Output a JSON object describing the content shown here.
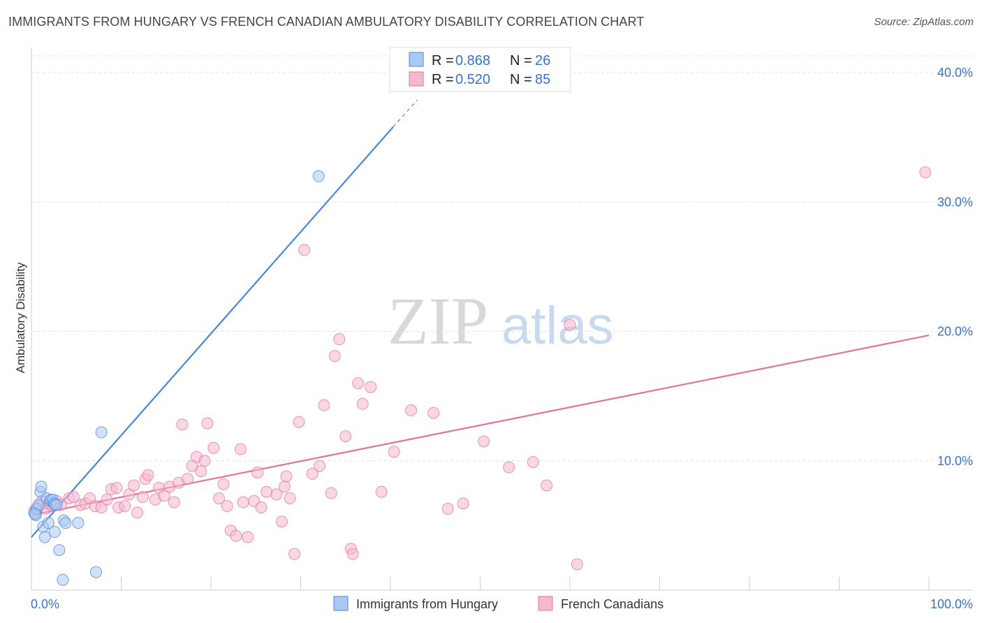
{
  "header": {
    "title": "IMMIGRANTS FROM HUNGARY VS FRENCH CANADIAN AMBULATORY DISABILITY CORRELATION CHART",
    "source": "Source: ZipAtlas.com"
  },
  "watermark": {
    "zip": "ZIP",
    "atlas": "atlas"
  },
  "colors": {
    "blue": "#4a86d8",
    "blue_fill": "#a9c8f3",
    "pink": "#e3719b",
    "pink_fill": "#f6b8cc",
    "label": "#3a72c8"
  },
  "chart_data": {
    "type": "scatter",
    "title": "IMMIGRANTS FROM HUNGARY VS FRENCH CANADIAN AMBULATORY DISABILITY CORRELATION CHART",
    "xlabel": "",
    "ylabel": "Ambulatory Disability",
    "xlim": [
      0,
      100
    ],
    "ylim": [
      0,
      41.3
    ],
    "x_tick_labels": {
      "min": "0.0%",
      "max": "100.0%"
    },
    "y_ticks": [
      {
        "value": 10,
        "label": "10.0%"
      },
      {
        "value": 20,
        "label": "20.0%"
      },
      {
        "value": 30,
        "label": "30.0%"
      },
      {
        "value": 40,
        "label": "40.0%"
      }
    ],
    "grid": true,
    "legend": [
      {
        "series": "Immigrants from Hungary",
        "r_label": "R =",
        "r": "0.868",
        "n_label": "N =",
        "n": "26"
      },
      {
        "series": "French Canadians",
        "r_label": "R =",
        "r": "0.520",
        "n_label": "N =",
        "n": "85"
      }
    ],
    "series": [
      {
        "name": "Immigrants from Hungary",
        "color": "blue",
        "trend": {
          "x0": 0,
          "y0": 4.1,
          "x1": 40.3,
          "y1": 35.8,
          "dash_to_x": 43.0,
          "dash_to_y": 37.9
        },
        "points": [
          [
            0.3,
            6.0
          ],
          [
            0.5,
            5.8
          ],
          [
            0.6,
            6.3
          ],
          [
            0.8,
            6.6
          ],
          [
            1.0,
            7.6
          ],
          [
            1.1,
            8.0
          ],
          [
            1.3,
            4.9
          ],
          [
            1.5,
            4.1
          ],
          [
            1.7,
            7.1
          ],
          [
            1.9,
            5.2
          ],
          [
            2.1,
            6.9
          ],
          [
            2.2,
            7.0
          ],
          [
            2.4,
            7.0
          ],
          [
            2.5,
            6.7
          ],
          [
            2.6,
            6.6
          ],
          [
            2.8,
            6.6
          ],
          [
            2.6,
            4.5
          ],
          [
            3.1,
            3.1
          ],
          [
            3.5,
            0.8
          ],
          [
            3.6,
            5.4
          ],
          [
            3.8,
            5.2
          ],
          [
            5.2,
            5.2
          ],
          [
            7.2,
            1.4
          ],
          [
            7.8,
            12.2
          ],
          [
            0.4,
            5.9
          ],
          [
            32.0,
            32.0
          ]
        ]
      },
      {
        "name": "French Canadians",
        "color": "pink",
        "trend": {
          "x0": 0,
          "y0": 5.8,
          "x1": 100,
          "y1": 19.7
        },
        "points": [
          [
            0.4,
            6.2
          ],
          [
            0.9,
            6.5
          ],
          [
            1.2,
            6.9
          ],
          [
            1.6,
            6.3
          ],
          [
            1.9,
            6.7
          ],
          [
            2.3,
            6.5
          ],
          [
            2.8,
            6.9
          ],
          [
            3.3,
            6.6
          ],
          [
            4.2,
            7.1
          ],
          [
            4.7,
            7.2
          ],
          [
            5.5,
            6.6
          ],
          [
            6.0,
            6.7
          ],
          [
            6.5,
            7.1
          ],
          [
            7.1,
            6.5
          ],
          [
            7.8,
            6.4
          ],
          [
            8.4,
            7.0
          ],
          [
            8.9,
            7.8
          ],
          [
            9.5,
            7.9
          ],
          [
            9.7,
            6.4
          ],
          [
            10.4,
            6.5
          ],
          [
            10.9,
            7.4
          ],
          [
            11.4,
            8.1
          ],
          [
            11.8,
            6.0
          ],
          [
            12.4,
            7.2
          ],
          [
            12.7,
            8.6
          ],
          [
            13.0,
            8.9
          ],
          [
            13.8,
            7.0
          ],
          [
            14.2,
            7.9
          ],
          [
            14.8,
            7.3
          ],
          [
            15.4,
            8.0
          ],
          [
            15.9,
            6.8
          ],
          [
            16.4,
            8.3
          ],
          [
            16.8,
            12.8
          ],
          [
            17.4,
            8.6
          ],
          [
            17.9,
            9.6
          ],
          [
            18.4,
            10.3
          ],
          [
            18.9,
            9.2
          ],
          [
            19.3,
            10.0
          ],
          [
            19.6,
            12.9
          ],
          [
            20.3,
            11.0
          ],
          [
            20.9,
            7.1
          ],
          [
            21.4,
            8.2
          ],
          [
            21.8,
            6.5
          ],
          [
            22.2,
            4.6
          ],
          [
            22.8,
            4.2
          ],
          [
            23.3,
            10.9
          ],
          [
            23.6,
            6.8
          ],
          [
            24.1,
            4.1
          ],
          [
            24.8,
            6.9
          ],
          [
            25.2,
            9.1
          ],
          [
            25.6,
            6.4
          ],
          [
            26.2,
            7.6
          ],
          [
            27.3,
            7.4
          ],
          [
            27.9,
            5.3
          ],
          [
            28.4,
            8.8
          ],
          [
            28.8,
            7.1
          ],
          [
            29.3,
            2.8
          ],
          [
            29.8,
            13.0
          ],
          [
            30.4,
            26.3
          ],
          [
            31.3,
            9.0
          ],
          [
            32.1,
            9.6
          ],
          [
            32.6,
            14.3
          ],
          [
            33.4,
            7.5
          ],
          [
            33.8,
            18.1
          ],
          [
            34.3,
            19.4
          ],
          [
            35.0,
            11.9
          ],
          [
            35.6,
            3.2
          ],
          [
            35.8,
            2.8
          ],
          [
            36.4,
            16.0
          ],
          [
            36.9,
            14.4
          ],
          [
            37.8,
            15.7
          ],
          [
            39.0,
            7.6
          ],
          [
            40.4,
            10.7
          ],
          [
            42.3,
            13.9
          ],
          [
            44.8,
            13.7
          ],
          [
            46.4,
            6.3
          ],
          [
            48.1,
            6.7
          ],
          [
            50.4,
            11.5
          ],
          [
            53.2,
            9.5
          ],
          [
            55.9,
            9.9
          ],
          [
            57.4,
            8.1
          ],
          [
            60.0,
            20.5
          ],
          [
            60.8,
            2.0
          ],
          [
            28.2,
            8.0
          ],
          [
            99.6,
            32.3
          ]
        ]
      }
    ]
  },
  "bottom_legend": {
    "items": [
      {
        "label": "Immigrants from Hungary"
      },
      {
        "label": "French Canadians"
      }
    ]
  }
}
